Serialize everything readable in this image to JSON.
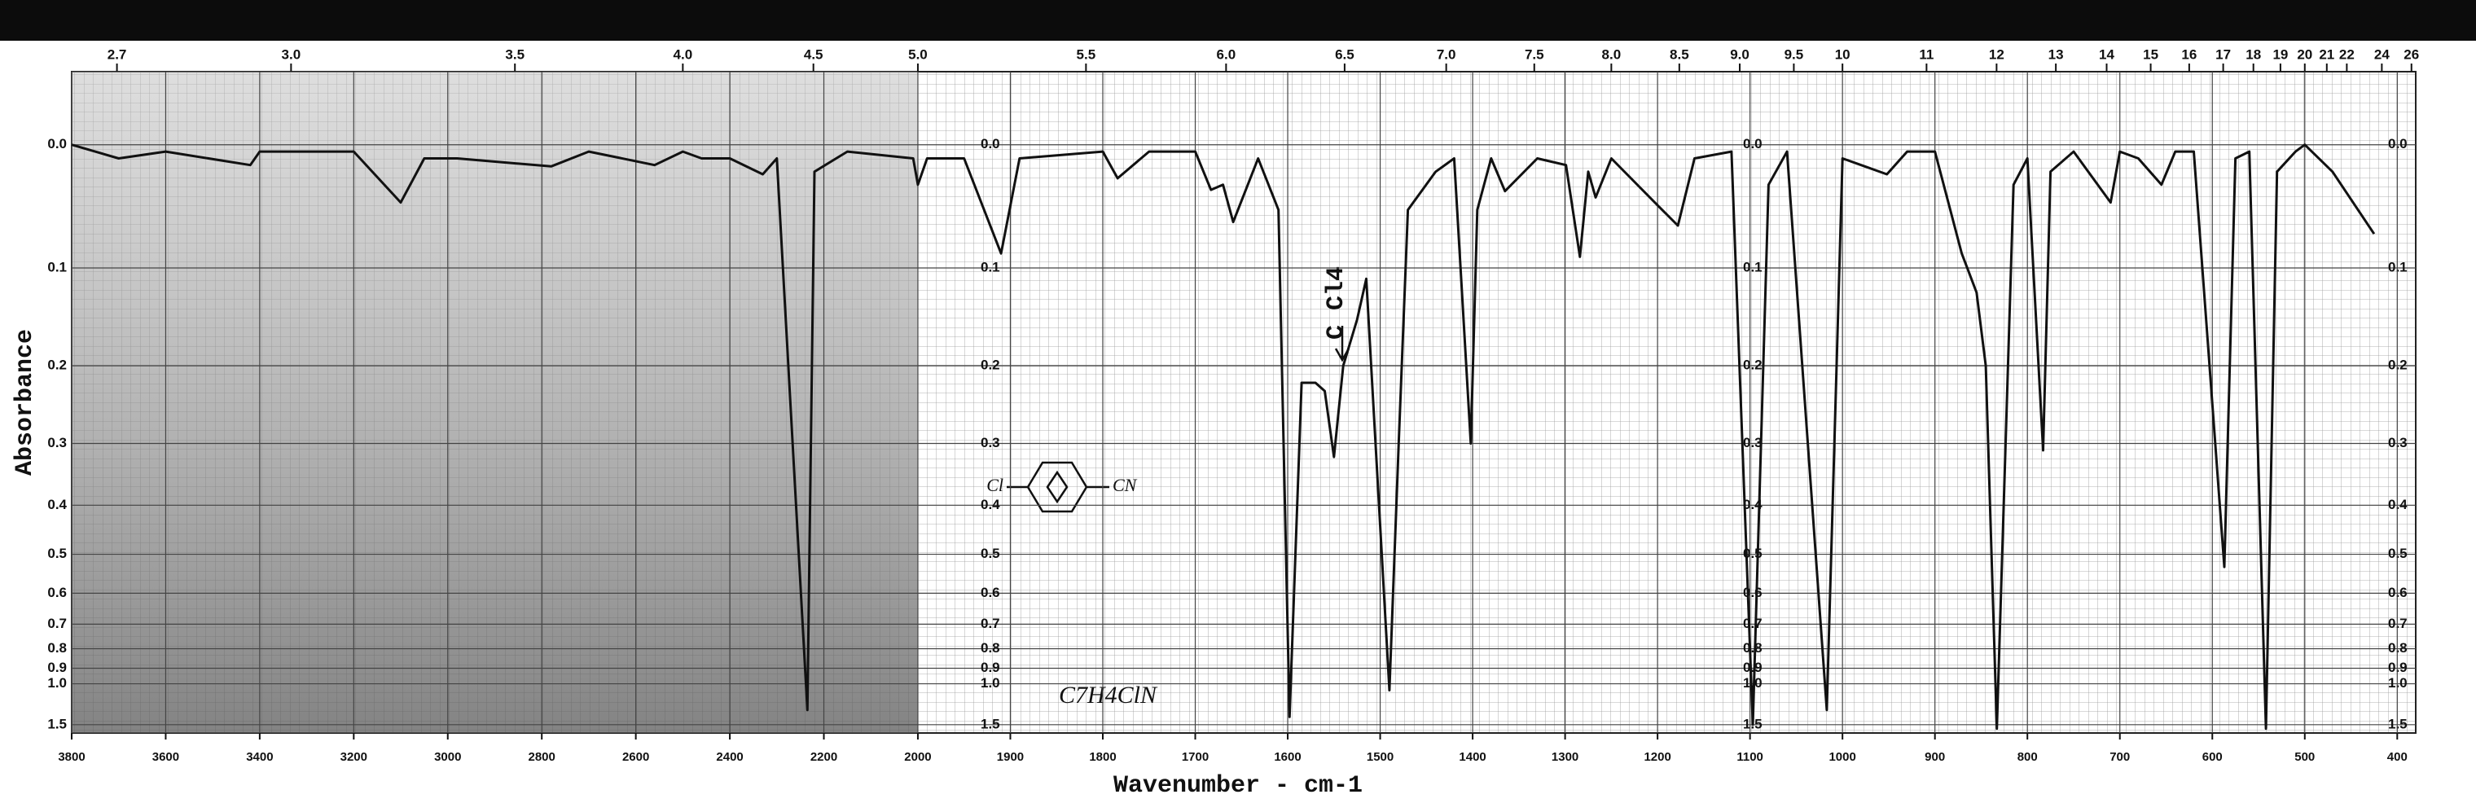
{
  "chart_data": {
    "type": "line",
    "y_label": "Absorbance",
    "x_label": "Wavenumber - cm-1",
    "annotations": [
      "C Cl4",
      "Cl",
      "CN",
      "C7H4ClN"
    ],
    "xlim": [
      3800,
      380
    ],
    "x_scale_break": 2000,
    "xticks": [
      3800,
      3600,
      3400,
      3200,
      3000,
      2800,
      2600,
      2400,
      2200,
      2000,
      1900,
      1800,
      1700,
      1600,
      1500,
      1400,
      1300,
      1200,
      1100,
      1000,
      900,
      800,
      700,
      600,
      500,
      400
    ],
    "x2ticks": [
      2.7,
      {
        "value": 3,
        "label": "3.0"
      },
      3.5,
      {
        "value": 4,
        "label": "4.0"
      },
      4.5,
      {
        "value": 5,
        "label": "5.0"
      },
      5.5,
      {
        "value": 6,
        "label": "6.0"
      },
      6.5,
      {
        "value": 7,
        "label": "7.0"
      },
      7.5,
      {
        "value": 8,
        "label": "8.0"
      },
      8.5,
      {
        "value": 9,
        "label": "9.0"
      },
      9.5,
      10,
      11,
      12,
      13,
      14,
      15,
      16,
      17,
      18,
      19,
      20,
      21,
      22,
      24,
      26
    ],
    "ylim": [
      -0.05,
      1.75
    ],
    "y_scale": "transmittance",
    "yticks": [
      {
        "value": 0,
        "label": "0.0"
      },
      0.1,
      0.2,
      0.3,
      0.4,
      0.5,
      0.6,
      0.7,
      0.8,
      0.9,
      {
        "value": 1,
        "label": "1.0"
      },
      1.5
    ],
    "grid": true,
    "x": [
      3800,
      3700,
      3600,
      3420,
      3400,
      3200,
      3100,
      3050,
      2980,
      2780,
      2700,
      2560,
      2500,
      2460,
      2400,
      2330,
      2300,
      2235,
      2220,
      2150,
      2010,
      2000,
      1990,
      1950,
      1910,
      1890,
      1800,
      1784,
      1750,
      1700,
      1683,
      1670,
      1659,
      1632,
      1610,
      1598,
      1585,
      1570,
      1560,
      1550,
      1540,
      1525,
      1515,
      1490,
      1480,
      1470,
      1440,
      1420,
      1402,
      1395,
      1380,
      1365,
      1330,
      1299,
      1284,
      1275,
      1267,
      1250,
      1199,
      1178,
      1160,
      1120,
      1097,
      1080,
      1060,
      1017,
      1000,
      952,
      930,
      900,
      871,
      855,
      845,
      833,
      815,
      800,
      783,
      775,
      750,
      710,
      700,
      680,
      655,
      640,
      620,
      587,
      575,
      560,
      542,
      530,
      510,
      500,
      470,
      425
    ],
    "series": [
      {
        "color": "#111111",
        "values": [
          0.0,
          0.01,
          0.005,
          0.015,
          0.005,
          0.005,
          0.044,
          0.01,
          0.01,
          0.016,
          0.005,
          0.015,
          0.005,
          0.01,
          0.01,
          0.022,
          0.01,
          1.25,
          0.02,
          0.005,
          0.01,
          0.03,
          0.01,
          0.01,
          0.087,
          0.01,
          0.005,
          0.025,
          0.005,
          0.005,
          0.034,
          0.03,
          0.06,
          0.01,
          0.05,
          1.35,
          0.22,
          0.22,
          0.23,
          0.32,
          0.2,
          0.15,
          0.11,
          1.05,
          0.3,
          0.05,
          0.02,
          0.01,
          0.3,
          0.05,
          0.01,
          0.035,
          0.01,
          0.015,
          0.09,
          0.02,
          0.04,
          0.01,
          0.047,
          0.063,
          0.01,
          0.005,
          1.5,
          0.03,
          0.005,
          1.25,
          0.01,
          0.022,
          0.005,
          0.005,
          0.087,
          0.123,
          0.2,
          1.6,
          0.03,
          0.01,
          0.31,
          0.02,
          0.005,
          0.044,
          0.005,
          0.01,
          0.03,
          0.005,
          0.005,
          0.53,
          0.01,
          0.005,
          1.6,
          0.02,
          0.005,
          0.0,
          0.02,
          0.07
        ]
      }
    ]
  }
}
